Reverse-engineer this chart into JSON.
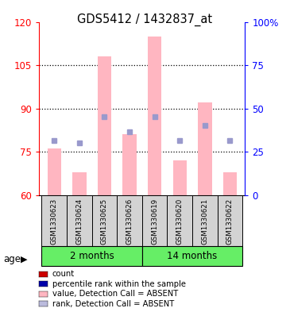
{
  "title": "GDS5412 / 1432837_at",
  "samples": [
    "GSM1330623",
    "GSM1330624",
    "GSM1330625",
    "GSM1330626",
    "GSM1330619",
    "GSM1330620",
    "GSM1330621",
    "GSM1330622"
  ],
  "bar_values": [
    76,
    68,
    108,
    81,
    115,
    72,
    92,
    68
  ],
  "rank_values": [
    79,
    78,
    87,
    82,
    87,
    79,
    84,
    79
  ],
  "ylim_left": [
    60,
    120
  ],
  "ylim_right": [
    0,
    100
  ],
  "yticks_left": [
    60,
    75,
    90,
    105,
    120
  ],
  "yticks_right": [
    0,
    25,
    50,
    75,
    100
  ],
  "ytick_labels_right": [
    "0",
    "25",
    "50",
    "75",
    "100%"
  ],
  "bar_color": "#FFB6C1",
  "rank_color": "#9999CC",
  "bar_bottom": 60,
  "groups": [
    {
      "label": "2 months",
      "n": 4
    },
    {
      "label": "14 months",
      "n": 4
    }
  ],
  "group_color": "#66EE66",
  "group_separator": 4,
  "age_label": "age",
  "legend_items": [
    {
      "color": "#CC0000",
      "label": "count"
    },
    {
      "color": "#0000AA",
      "label": "percentile rank within the sample"
    },
    {
      "color": "#FFB6C1",
      "label": "value, Detection Call = ABSENT"
    },
    {
      "color": "#BBBBDD",
      "label": "rank, Detection Call = ABSENT"
    }
  ],
  "grid_color": "black",
  "plot_bg": "#FFFFFF",
  "outer_bg": "#FFFFFF"
}
